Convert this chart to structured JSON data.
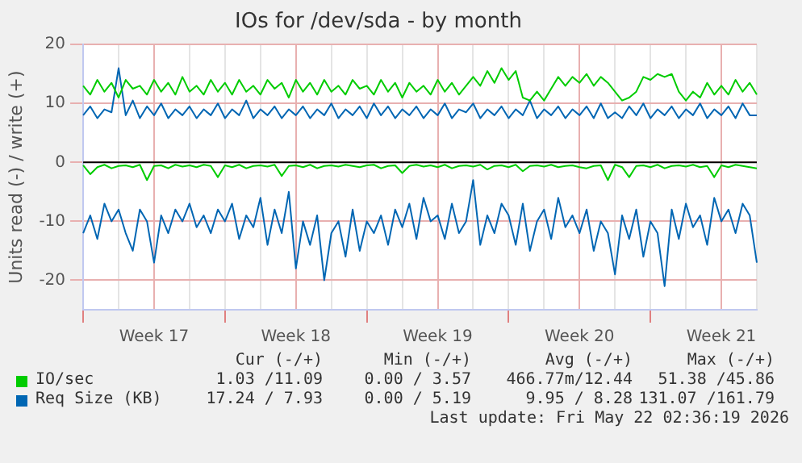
{
  "chart_data": {
    "type": "line",
    "title": "IOs for /dev/sda - by month",
    "ylabel": "Units read (-) / write (+)",
    "categories": [
      null,
      null,
      null,
      null,
      null,
      null,
      null,
      null,
      null,
      null,
      "Week 17",
      null,
      null,
      null,
      null,
      null,
      null,
      null,
      null,
      null,
      null,
      null,
      null,
      null,
      null,
      null,
      null,
      null,
      null,
      null,
      "Week 18",
      null,
      null,
      null,
      null,
      null,
      null,
      null,
      null,
      null,
      null,
      null,
      null,
      null,
      null,
      null,
      null,
      null,
      null,
      null,
      "Week 19",
      null,
      null,
      null,
      null,
      null,
      null,
      null,
      null,
      null,
      null,
      null,
      null,
      null,
      null,
      null,
      null,
      null,
      null,
      null,
      "Week 20",
      null,
      null,
      null,
      null,
      null,
      null,
      null,
      null,
      null,
      null,
      null,
      null,
      null,
      null,
      null,
      null,
      null,
      null,
      null,
      "Week 21",
      null,
      null,
      null,
      null,
      null
    ],
    "series": [
      {
        "name": "IO/sec",
        "color": "#00cc00",
        "values": [
          13,
          11.5,
          14,
          12,
          13.5,
          11,
          14,
          12.5,
          13,
          11.5,
          14,
          12,
          13.5,
          11.5,
          14.5,
          12,
          13,
          11.5,
          14,
          12,
          13.5,
          11.5,
          14,
          12,
          13,
          11.5,
          14,
          12.5,
          13.5,
          11,
          14,
          12,
          13.5,
          11.5,
          14,
          12,
          13,
          11.5,
          14,
          12.5,
          13,
          11.5,
          14,
          12,
          13.5,
          11,
          13.5,
          12,
          13,
          11.5,
          14,
          12,
          13.5,
          11.5,
          13,
          14.5,
          13,
          15.5,
          13.5,
          16,
          14,
          15.5,
          11,
          10.5,
          12,
          10.5,
          12.5,
          14.5,
          13,
          14.5,
          13.5,
          15,
          13,
          14.5,
          13.5,
          12,
          10.5,
          11,
          12,
          14.5,
          14,
          15,
          14.5,
          15,
          12,
          10.5,
          12,
          11,
          13.5,
          11.5,
          13,
          11.5,
          14,
          12,
          13.5,
          11.5
        ]
      },
      {
        "color": "#00cc00",
        "values": [
          -0.5,
          -2,
          -0.8,
          -0.4,
          -1,
          -0.6,
          -0.5,
          -0.8,
          -0.4,
          -3,
          -0.6,
          -0.5,
          -1,
          -0.4,
          -0.7,
          -0.5,
          -0.8,
          -0.4,
          -0.6,
          -2.5,
          -0.5,
          -0.8,
          -0.4,
          -1,
          -0.6,
          -0.5,
          -0.7,
          -0.4,
          -2.3,
          -0.6,
          -0.5,
          -0.8,
          -0.4,
          -1,
          -0.6,
          -0.5,
          -0.7,
          -0.4,
          -0.6,
          -0.8,
          -0.5,
          -0.4,
          -1,
          -0.6,
          -0.5,
          -1.8,
          -0.6,
          -0.4,
          -0.7,
          -0.5,
          -0.8,
          -0.4,
          -1,
          -0.6,
          -0.5,
          -0.7,
          -0.4,
          -1.2,
          -0.6,
          -0.5,
          -0.8,
          -0.4,
          -1.5,
          -0.6,
          -0.5,
          -0.7,
          -0.4,
          -0.8,
          -0.6,
          -0.5,
          -0.8,
          -1,
          -0.6,
          -0.5,
          -3,
          -0.4,
          -0.8,
          -2.5,
          -0.6,
          -0.5,
          -0.8,
          -0.4,
          -1,
          -0.6,
          -0.5,
          -0.7,
          -0.4,
          -0.8,
          -0.6,
          -2.5,
          -0.5,
          -0.8,
          -0.4,
          -0.6,
          -0.8,
          -1
        ]
      },
      {
        "name": "Req Size (KB)",
        "color": "#0066b3",
        "values": [
          8,
          9.5,
          7.5,
          9,
          8.5,
          16,
          8,
          10.5,
          7.5,
          9.5,
          8,
          10,
          7.5,
          9,
          8,
          9.5,
          7.5,
          9,
          8,
          10,
          7.5,
          9,
          8,
          10.5,
          7.5,
          9,
          8,
          9.5,
          7.5,
          9,
          8,
          9.5,
          7.5,
          9,
          8,
          10,
          7.5,
          9,
          8,
          9.5,
          7.5,
          10,
          8,
          9.5,
          7.5,
          9,
          8,
          9.5,
          7.5,
          9,
          8,
          10,
          7.5,
          9,
          8.5,
          10,
          7.5,
          9,
          8,
          9.5,
          7.5,
          9,
          8,
          10.5,
          7.5,
          9,
          8,
          9.5,
          7.5,
          9,
          8,
          9.5,
          7.5,
          10,
          7.5,
          8.5,
          7.5,
          9.5,
          8,
          10,
          7.5,
          9,
          8,
          9.5,
          7.5,
          9,
          8,
          10,
          7.5,
          9,
          8,
          9.5,
          7.5,
          10,
          8,
          8
        ]
      },
      {
        "color": "#0066b3",
        "values": [
          -12,
          -9,
          -13,
          -7,
          -10,
          -8,
          -12,
          -15,
          -8,
          -10,
          -17,
          -9,
          -12,
          -8,
          -10,
          -7,
          -11,
          -9,
          -12,
          -8,
          -10,
          -7,
          -13,
          -9,
          -11,
          -6,
          -14,
          -8,
          -12,
          -5,
          -18,
          -10,
          -14,
          -9,
          -20,
          -12,
          -10,
          -16,
          -8,
          -15,
          -10,
          -12,
          -9,
          -14,
          -8,
          -11,
          -7,
          -13,
          -6,
          -10,
          -9,
          -13,
          -7,
          -12,
          -10,
          -3,
          -14,
          -9,
          -12,
          -7,
          -9,
          -14,
          -7,
          -15,
          -10,
          -8,
          -13,
          -6,
          -11,
          -9,
          -12,
          -8,
          -15,
          -10,
          -12,
          -19,
          -9,
          -13,
          -8,
          -16,
          -10,
          -12,
          -21,
          -8,
          -13,
          -7,
          -11,
          -9,
          -14,
          -6,
          -10,
          -8,
          -12,
          -7,
          -9,
          -17
        ]
      }
    ],
    "ylim": [
      -25,
      20
    ],
    "yticks": [
      -20,
      -10,
      0,
      10,
      20
    ],
    "ref_lines": [
      {
        "axis": "y",
        "value": 0,
        "color": "#000000"
      }
    ],
    "grid": true,
    "legend": "bottom",
    "marker": "none",
    "line_style": "solid",
    "annotations": [
      "Cur (-/+)",
      "Min (-/+)",
      "Avg (-/+)",
      "Max (-/+)",
      "1.03 /11.09",
      "0.00 / 3.57",
      "466.77m/12.44",
      "51.38 /45.86",
      "17.24 / 7.93",
      "0.00 / 5.19",
      "9.95 / 8.28",
      "131.07 /161.79",
      "Last update: Fri May 22 02:36:19 2026"
    ]
  }
}
